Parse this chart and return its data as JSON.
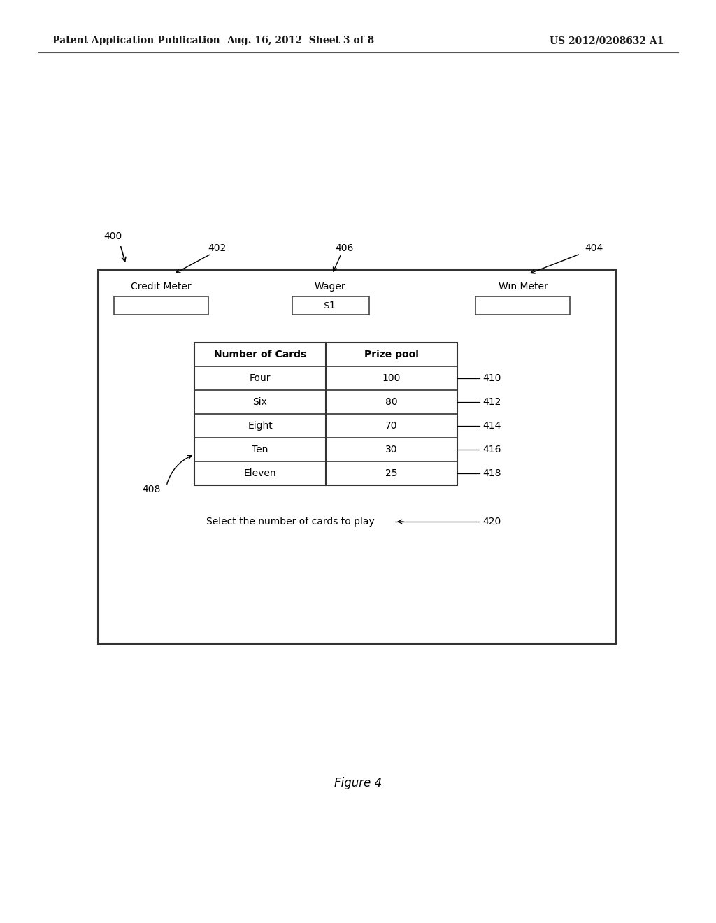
{
  "bg_color": "#ffffff",
  "header_left": "Patent Application Publication",
  "header_center": "Aug. 16, 2012  Sheet 3 of 8",
  "header_right": "US 2012/0208632 A1",
  "figure_label": "Figure 4",
  "label_400": "400",
  "label_402": "402",
  "label_404": "404",
  "label_406": "406",
  "label_408": "408",
  "label_410": "410",
  "label_412": "412",
  "label_414": "414",
  "label_416": "416",
  "label_418": "418",
  "label_420": "420",
  "credit_meter_label": "Credit Meter",
  "wager_label": "Wager",
  "wager_value": "$1",
  "win_meter_label": "Win Meter",
  "table_col1_header": "Number of Cards",
  "table_col2_header": "Prize pool",
  "table_rows": [
    [
      "Four",
      "100"
    ],
    [
      "Six",
      "80"
    ],
    [
      "Eight",
      "70"
    ],
    [
      "Ten",
      "30"
    ],
    [
      "Eleven",
      "25"
    ]
  ],
  "select_text": "Select the number of cards to play"
}
